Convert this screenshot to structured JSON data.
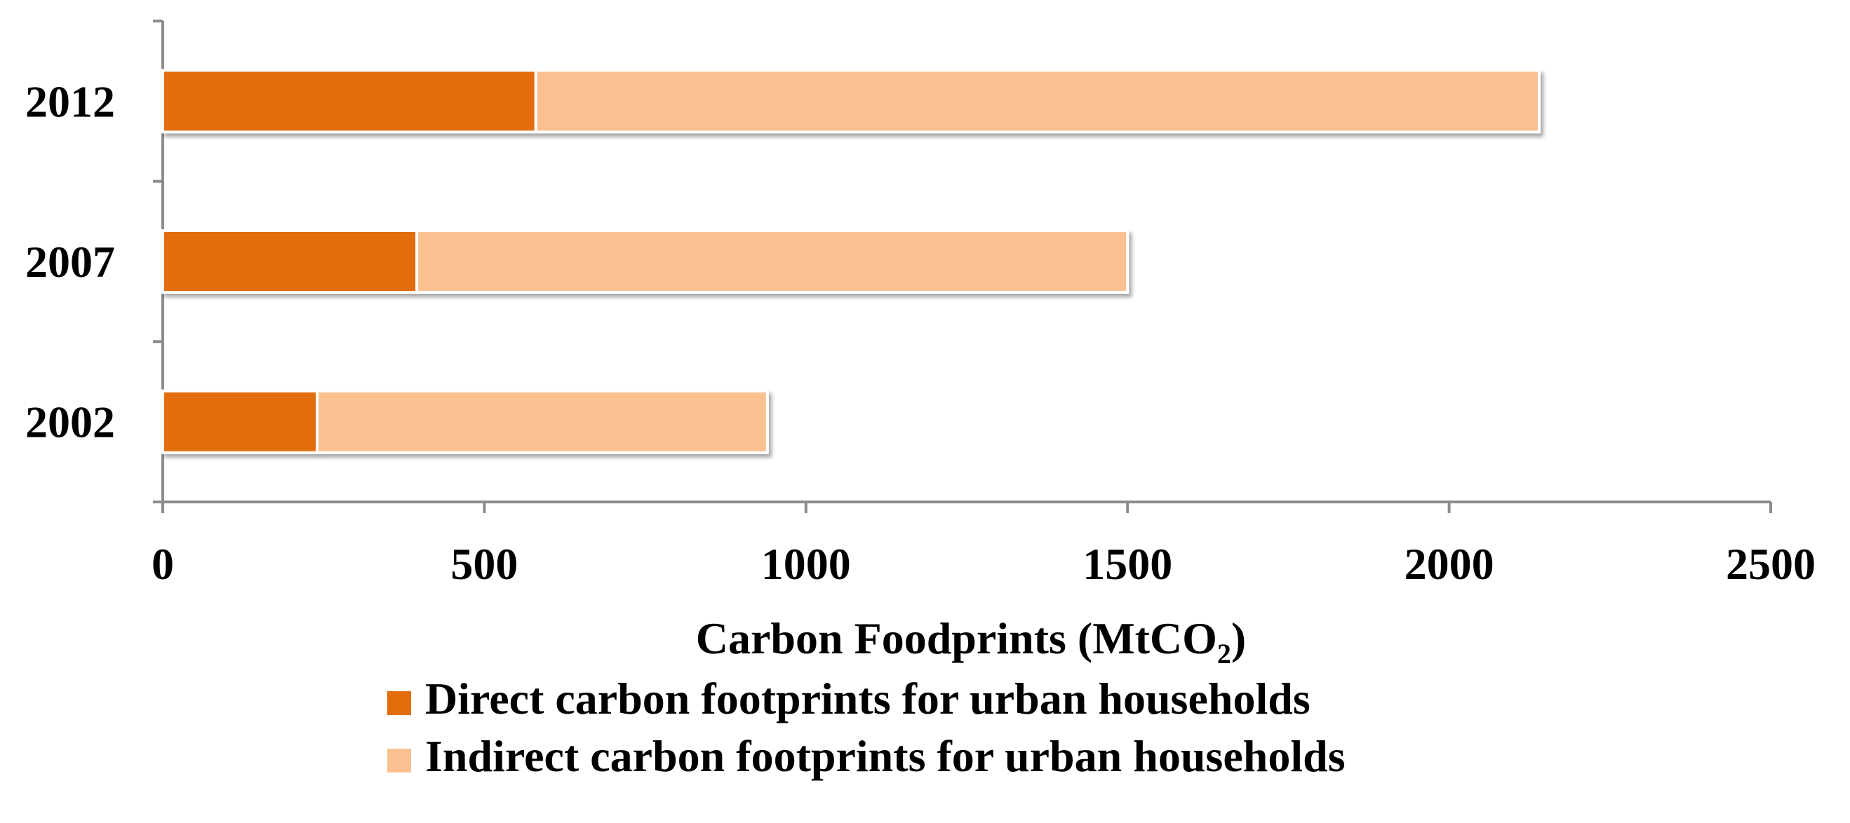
{
  "chart_data": {
    "type": "bar",
    "orientation": "horizontal",
    "stacked": true,
    "categories": [
      "2002",
      "2007",
      "2012"
    ],
    "series": [
      {
        "name": "Direct carbon footprints for urban households",
        "values": [
          240,
          395,
          580
        ],
        "color": "#E36C0A"
      },
      {
        "name": "Indirect carbon footprints for urban households",
        "values": [
          700,
          1105,
          1560
        ],
        "color": "#FAC090"
      }
    ],
    "xlabel": {
      "main": "Carbon Foodprints (MtCO",
      "sub": "2",
      "close": ")"
    },
    "ylabel": "",
    "xlim": [
      0,
      2500
    ],
    "xticks": [
      "0",
      "500",
      "1000",
      "1500",
      "2000",
      "2500"
    ],
    "grid": false,
    "legend_position": "bottom"
  }
}
